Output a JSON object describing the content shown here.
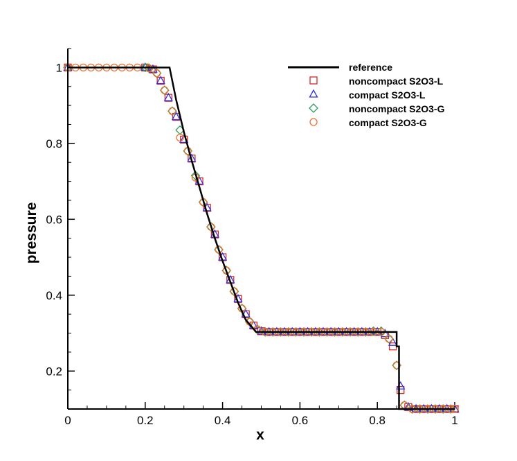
{
  "chart_data": {
    "type": "line",
    "title": "",
    "xlabel": "x",
    "ylabel": "pressure",
    "xlim": [
      0,
      1
    ],
    "ylim": [
      0.1,
      1.05
    ],
    "xticks": [
      0,
      0.2,
      0.4,
      0.6,
      0.8,
      1
    ],
    "xtick_labels": [
      "0",
      "0.2",
      "0.4",
      "0.6",
      "0.8",
      "1"
    ],
    "yticks": [
      0.2,
      0.4,
      0.6,
      0.8,
      1
    ],
    "ytick_labels": [
      "0.2",
      "0.4",
      "0.6",
      "0.8",
      "1"
    ],
    "grid": false,
    "legend_position": "top-right",
    "series": [
      {
        "name": "reference",
        "style": "line",
        "color": "#000000",
        "x": [
          0,
          0.263,
          0.28,
          0.3,
          0.32,
          0.34,
          0.36,
          0.38,
          0.4,
          0.42,
          0.44,
          0.46,
          0.487,
          0.85,
          0.85,
          0.856,
          0.856,
          1
        ],
        "y": [
          1,
          1,
          0.915,
          0.83,
          0.755,
          0.685,
          0.615,
          0.55,
          0.49,
          0.435,
          0.38,
          0.335,
          0.303,
          0.303,
          0.265,
          0.265,
          0.1,
          0.1
        ]
      },
      {
        "name": "noncompact S2O3-L",
        "style": "marker",
        "marker": "square",
        "color": "#d62728",
        "x": [
          0,
          0.2,
          0.22,
          0.24,
          0.26,
          0.28,
          0.3,
          0.32,
          0.34,
          0.36,
          0.38,
          0.4,
          0.42,
          0.44,
          0.46,
          0.48,
          0.5,
          0.52,
          0.54,
          0.56,
          0.58,
          0.6,
          0.62,
          0.64,
          0.66,
          0.68,
          0.7,
          0.72,
          0.74,
          0.76,
          0.78,
          0.8,
          0.82,
          0.84,
          0.86,
          0.88,
          0.9,
          0.92,
          0.94,
          0.96,
          0.98,
          1
        ],
        "y": [
          1,
          1,
          0.995,
          0.965,
          0.92,
          0.87,
          0.81,
          0.76,
          0.7,
          0.63,
          0.56,
          0.5,
          0.44,
          0.39,
          0.35,
          0.32,
          0.305,
          0.303,
          0.303,
          0.303,
          0.303,
          0.303,
          0.303,
          0.303,
          0.303,
          0.303,
          0.303,
          0.303,
          0.303,
          0.303,
          0.303,
          0.303,
          0.295,
          0.265,
          0.15,
          0.105,
          0.1,
          0.1,
          0.1,
          0.1,
          0.1,
          0.1
        ]
      },
      {
        "name": "compact S2O3-L",
        "style": "marker",
        "marker": "triangle",
        "color": "#3333dd",
        "x": [
          0,
          0.2,
          0.22,
          0.24,
          0.26,
          0.28,
          0.3,
          0.32,
          0.34,
          0.36,
          0.38,
          0.4,
          0.42,
          0.44,
          0.46,
          0.48,
          0.5,
          0.52,
          0.54,
          0.56,
          0.58,
          0.6,
          0.62,
          0.64,
          0.66,
          0.68,
          0.7,
          0.72,
          0.74,
          0.76,
          0.78,
          0.8,
          0.82,
          0.84,
          0.86,
          0.88,
          0.9,
          0.92,
          0.94,
          0.96,
          0.98,
          1
        ],
        "y": [
          1,
          1,
          0.995,
          0.965,
          0.92,
          0.87,
          0.81,
          0.76,
          0.7,
          0.63,
          0.56,
          0.5,
          0.44,
          0.39,
          0.35,
          0.32,
          0.305,
          0.303,
          0.303,
          0.303,
          0.303,
          0.303,
          0.303,
          0.303,
          0.303,
          0.303,
          0.303,
          0.303,
          0.303,
          0.303,
          0.303,
          0.303,
          0.298,
          0.275,
          0.16,
          0.105,
          0.1,
          0.1,
          0.1,
          0.1,
          0.1,
          0.1
        ]
      },
      {
        "name": "noncompact S2O3-G",
        "style": "marker",
        "marker": "diamond",
        "color": "#2ca05a",
        "x": [
          0,
          0.2,
          0.21,
          0.23,
          0.25,
          0.27,
          0.29,
          0.31,
          0.33,
          0.35,
          0.37,
          0.39,
          0.41,
          0.43,
          0.45,
          0.47,
          0.49,
          0.51,
          0.53,
          0.55,
          0.57,
          0.59,
          0.61,
          0.63,
          0.65,
          0.67,
          0.69,
          0.71,
          0.73,
          0.75,
          0.77,
          0.79,
          0.81,
          0.83,
          0.85,
          0.87,
          0.89,
          0.91,
          0.93,
          0.95,
          0.97,
          0.99
        ],
        "y": [
          1,
          1,
          0.998,
          0.985,
          0.94,
          0.885,
          0.835,
          0.78,
          0.715,
          0.645,
          0.58,
          0.52,
          0.465,
          0.41,
          0.365,
          0.33,
          0.31,
          0.303,
          0.303,
          0.303,
          0.303,
          0.303,
          0.303,
          0.303,
          0.303,
          0.303,
          0.303,
          0.303,
          0.303,
          0.303,
          0.303,
          0.305,
          0.305,
          0.285,
          0.215,
          0.11,
          0.1,
          0.1,
          0.1,
          0.1,
          0.1,
          0.1
        ]
      },
      {
        "name": "compact S2O3-G",
        "style": "marker",
        "marker": "circle",
        "color": "#f07030",
        "x": [
          0,
          0.02,
          0.04,
          0.06,
          0.08,
          0.1,
          0.12,
          0.14,
          0.16,
          0.18,
          0.21,
          0.23,
          0.25,
          0.27,
          0.29,
          0.31,
          0.33,
          0.35,
          0.37,
          0.39,
          0.41,
          0.43,
          0.45,
          0.47,
          0.49,
          0.51,
          0.53,
          0.55,
          0.57,
          0.59,
          0.61,
          0.63,
          0.65,
          0.67,
          0.69,
          0.71,
          0.73,
          0.75,
          0.77,
          0.79,
          0.81,
          0.83,
          0.85,
          0.87,
          0.89,
          0.91,
          0.93,
          0.95,
          0.97,
          0.99,
          1
        ],
        "y": [
          1,
          1,
          1,
          1,
          1,
          1,
          1,
          1,
          1,
          1,
          0.998,
          0.985,
          0.94,
          0.885,
          0.815,
          0.78,
          0.71,
          0.645,
          0.58,
          0.52,
          0.465,
          0.41,
          0.365,
          0.33,
          0.31,
          0.303,
          0.303,
          0.303,
          0.303,
          0.303,
          0.303,
          0.303,
          0.303,
          0.303,
          0.303,
          0.303,
          0.303,
          0.303,
          0.303,
          0.303,
          0.303,
          0.285,
          0.215,
          0.11,
          0.1,
          0.1,
          0.1,
          0.1,
          0.1,
          0.1,
          0.1
        ]
      }
    ]
  }
}
